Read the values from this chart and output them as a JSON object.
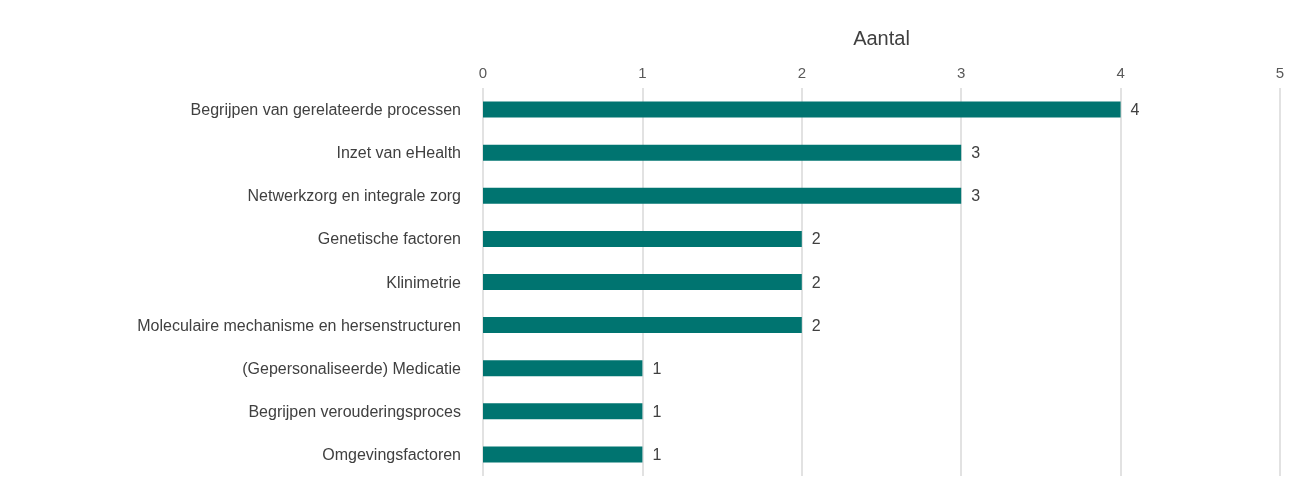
{
  "chart_data": {
    "type": "bar",
    "orientation": "horizontal",
    "xlabel": "Aantal",
    "categories": [
      "Begrijpen van gerelateerde processen",
      "Inzet van eHealth",
      "Netwerkzorg en integrale zorg",
      "Genetische factoren",
      "Klinimetrie",
      "Moleculaire mechanisme en hersenstructuren",
      "(Gepersonaliseerde) Medicatie",
      "Begrijpen verouderingsproces",
      "Omgevingsfactoren"
    ],
    "values": [
      4,
      3,
      3,
      2,
      2,
      2,
      1,
      1,
      1
    ],
    "color": "#007470",
    "xlim": [
      0,
      5
    ],
    "xticks": [
      0,
      1,
      2,
      3,
      4,
      5
    ],
    "grid": "x",
    "data_labels": true
  }
}
